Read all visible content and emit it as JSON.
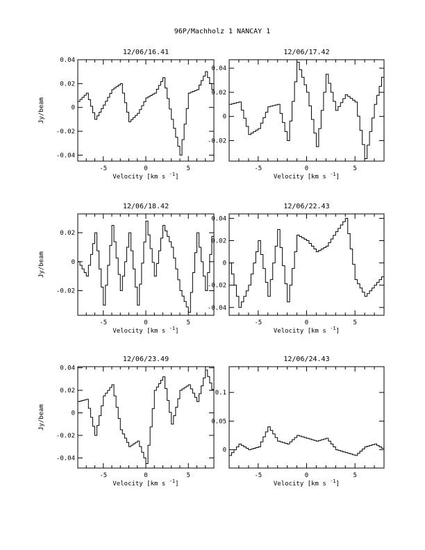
{
  "page_title": "96P/Machholz 1   NANCAY     1",
  "chart_data": [
    {
      "type": "line",
      "title": "12/06/16.41",
      "xlabel": "Velocity [km s",
      "xlabel_sup": "-1",
      "xlabel_end": "]",
      "ylabel": "Jy/beam",
      "xlim": [
        -8,
        8
      ],
      "ylim": [
        -0.045,
        0.04
      ],
      "xticks": [
        -5,
        0,
        5
      ],
      "yticks": [
        -0.04,
        -0.02,
        0,
        0.02,
        0.04
      ],
      "ytick_labels": [
        "-0.04",
        "-0.02",
        "0",
        "0.02",
        "0.04"
      ],
      "series": [
        {
          "x": [
            -8,
            -7,
            -6,
            -5,
            -4,
            -3,
            -2,
            -1,
            0,
            1,
            2,
            3,
            4,
            5,
            6,
            7,
            8
          ],
          "values": [
            0.005,
            0.012,
            -0.01,
            0.002,
            0.015,
            0.02,
            -0.012,
            -0.005,
            0.008,
            0.012,
            0.025,
            -0.01,
            -0.04,
            0.012,
            0.015,
            0.03,
            0.01
          ]
        }
      ]
    },
    {
      "type": "line",
      "title": "12/06/17.42",
      "xlabel": "Velocity [km s",
      "xlabel_sup": "-1",
      "xlabel_end": "]",
      "ylabel": "",
      "xlim": [
        -8,
        8
      ],
      "ylim": [
        -0.037,
        0.047
      ],
      "xticks": [
        -5,
        0,
        5
      ],
      "yticks": [
        -0.02,
        0,
        0.02,
        0.04
      ],
      "ytick_labels": [
        "-0.02",
        "0",
        "0.02",
        "0.04"
      ],
      "series": [
        {
          "x": [
            -8,
            -7,
            -6,
            -5,
            -4,
            -3,
            -2,
            -1,
            0,
            1,
            2,
            3,
            4,
            5,
            6,
            7,
            8
          ],
          "values": [
            0.01,
            0.012,
            -0.015,
            -0.01,
            0.008,
            0.01,
            -0.02,
            0.045,
            0.02,
            -0.025,
            0.035,
            0.005,
            0.018,
            0.012,
            -0.035,
            0.01,
            0.04
          ]
        }
      ]
    },
    {
      "type": "line",
      "title": "12/06/18.42",
      "xlabel": "Velocity [km s",
      "xlabel_sup": "-1",
      "xlabel_end": "]",
      "ylabel": "Jy/beam",
      "xlim": [
        -8,
        8
      ],
      "ylim": [
        -0.037,
        0.033
      ],
      "xticks": [
        -5,
        0,
        5
      ],
      "yticks": [
        -0.02,
        0,
        0.02
      ],
      "ytick_labels": [
        "-0.02",
        "0",
        "0.02"
      ],
      "series": [
        {
          "x": [
            -8,
            -7,
            -6,
            -5,
            -4,
            -3,
            -2,
            -1,
            0,
            1,
            2,
            3,
            4,
            5,
            6,
            7,
            8
          ],
          "values": [
            0.0,
            -0.01,
            0.02,
            -0.03,
            0.025,
            -0.02,
            0.02,
            -0.03,
            0.028,
            -0.01,
            0.025,
            0.01,
            -0.02,
            -0.035,
            0.02,
            -0.02,
            0.03
          ]
        }
      ]
    },
    {
      "type": "line",
      "title": "12/06/22.43",
      "xlabel": "Velocity [km s",
      "xlabel_sup": "-1",
      "xlabel_end": "]",
      "ylabel": "",
      "xlim": [
        -8,
        8
      ],
      "ylim": [
        -0.047,
        0.044
      ],
      "xticks": [
        -5,
        0,
        5
      ],
      "yticks": [
        -0.04,
        -0.02,
        0,
        0.02,
        0.04
      ],
      "ytick_labels": [
        "-0.04",
        "-0.02",
        "0",
        "0.02",
        "0.04"
      ],
      "series": [
        {
          "x": [
            -8,
            -7,
            -6,
            -5,
            -4,
            -3,
            -2,
            -1,
            0,
            1,
            2,
            3,
            4,
            5,
            6,
            7,
            8
          ],
          "values": [
            0.0,
            -0.04,
            -0.02,
            0.02,
            -0.03,
            0.03,
            -0.035,
            0.025,
            0.02,
            0.01,
            0.015,
            0.028,
            0.04,
            -0.015,
            -0.03,
            -0.02,
            -0.01
          ]
        }
      ]
    },
    {
      "type": "line",
      "title": "12/06/23.49",
      "xlabel": "Velocity [km s",
      "xlabel_sup": "-1",
      "xlabel_end": "]",
      "ylabel": "Jy/beam",
      "xlim": [
        -8,
        8
      ],
      "ylim": [
        -0.049,
        0.041
      ],
      "xticks": [
        -5,
        0,
        5
      ],
      "yticks": [
        -0.04,
        -0.02,
        0,
        0.02,
        0.04
      ],
      "ytick_labels": [
        "-0.04",
        "-0.02",
        "0",
        "0.02",
        "0.04"
      ],
      "series": [
        {
          "x": [
            -8,
            -7,
            -6,
            -5,
            -4,
            -3,
            -2,
            -1,
            0,
            1,
            2,
            3,
            4,
            5,
            6,
            7,
            8
          ],
          "values": [
            0.01,
            0.012,
            -0.02,
            0.015,
            0.025,
            -0.015,
            -0.03,
            -0.025,
            -0.045,
            0.02,
            0.032,
            -0.01,
            0.02,
            0.025,
            0.01,
            0.038,
            0.015
          ]
        }
      ]
    },
    {
      "type": "line",
      "title": "12/06/24.43",
      "xlabel": "Velocity [km s",
      "xlabel_sup": "-1",
      "xlabel_end": "]",
      "ylabel": "",
      "xlim": [
        -8,
        8
      ],
      "ylim": [
        -0.032,
        0.145
      ],
      "xticks": [
        -5,
        0,
        5
      ],
      "yticks": [
        0,
        0.05,
        0.1
      ],
      "ytick_labels": [
        "0",
        "0.05",
        "0.1"
      ],
      "series": [
        {
          "x": [
            -8,
            -7,
            -6,
            -5,
            -4,
            -3,
            -2,
            -1,
            0,
            1,
            2,
            3,
            4,
            5,
            6,
            7,
            8
          ],
          "values": [
            -0.01,
            0.01,
            0.0,
            0.005,
            0.04,
            0.015,
            0.01,
            0.025,
            0.02,
            0.015,
            0.02,
            0.0,
            -0.005,
            -0.01,
            0.005,
            0.01,
            0.0
          ]
        }
      ]
    }
  ]
}
